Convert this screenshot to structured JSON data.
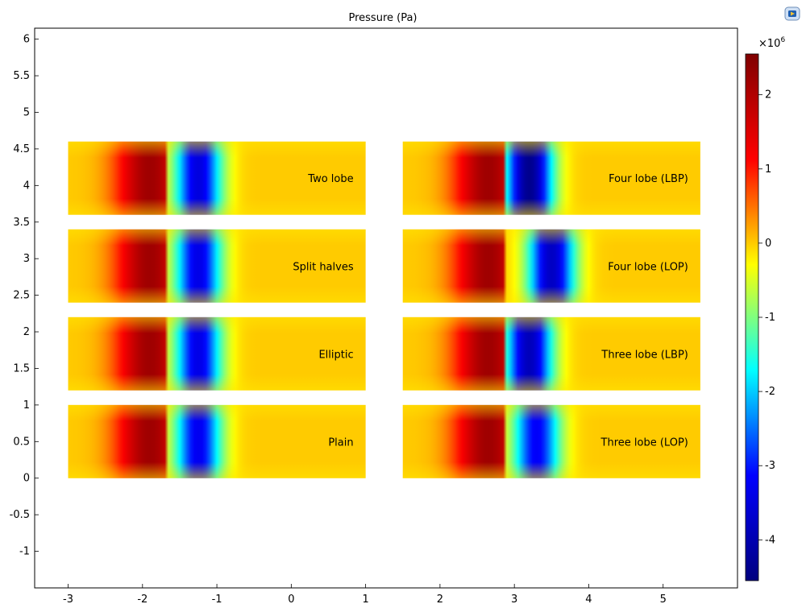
{
  "chart_data": {
    "type": "heatmap",
    "title": "Pressure (Pa)",
    "xlabel": "",
    "ylabel": "",
    "xlim": [
      -3.45,
      6.0
    ],
    "ylim": [
      -1.5,
      6.15
    ],
    "xticks": [
      -3,
      -2,
      -1,
      0,
      1,
      2,
      3,
      4,
      5
    ],
    "yticks": [
      6,
      5.5,
      5,
      4.5,
      4,
      3.5,
      3,
      2.5,
      2,
      1.5,
      1,
      0.5,
      0,
      -0.5,
      -1
    ],
    "grid": false,
    "panels": [
      {
        "label": "Two lobe",
        "x": [
          -3,
          1
        ],
        "y": [
          3.6,
          4.6
        ],
        "hot_center": -1.9,
        "cold_center": -1.25,
        "cold_depth": -3.5
      },
      {
        "label": "Split halves",
        "x": [
          -3,
          1
        ],
        "y": [
          2.4,
          3.4
        ],
        "hot_center": -1.9,
        "cold_center": -1.25,
        "cold_depth": -3.4
      },
      {
        "label": "Elliptic",
        "x": [
          -3,
          1
        ],
        "y": [
          1.2,
          2.2
        ],
        "hot_center": -1.9,
        "cold_center": -1.25,
        "cold_depth": -3.4
      },
      {
        "label": "Plain",
        "x": [
          -3,
          1
        ],
        "y": [
          0,
          1
        ],
        "hot_center": -1.9,
        "cold_center": -1.25,
        "cold_depth": -3.3
      },
      {
        "label": "Four lobe (LBP)",
        "x": [
          1.5,
          5.5
        ],
        "y": [
          3.6,
          4.6
        ],
        "hot_center": 2.65,
        "cold_center": 3.2,
        "cold_depth": -4.4
      },
      {
        "label": "Four lobe (LOP)",
        "x": [
          1.5,
          5.5
        ],
        "y": [
          2.4,
          3.4
        ],
        "hot_center": 2.65,
        "cold_center": 3.5,
        "cold_depth": -3.8
      },
      {
        "label": "Three lobe (LBP)",
        "x": [
          1.5,
          5.5
        ],
        "y": [
          1.2,
          2.2
        ],
        "hot_center": 2.65,
        "cold_center": 3.2,
        "cold_depth": -3.9
      },
      {
        "label": "Three lobe (LOP)",
        "x": [
          1.5,
          5.5
        ],
        "y": [
          0,
          1
        ],
        "hot_center": 2.65,
        "cold_center": 3.3,
        "cold_depth": -3.2
      }
    ],
    "colorbar": {
      "multiplier": "×10",
      "exponent": "6",
      "range": [
        -4.55,
        2.55
      ],
      "ticks": [
        2,
        1,
        0,
        -1,
        -2,
        -3,
        -4
      ],
      "colormap": [
        "#00007f",
        "#0000ff",
        "#00ffff",
        "#ffff00",
        "#ff0000",
        "#7f0000"
      ]
    }
  },
  "colors": {
    "background": "#ffffff",
    "axis": "#000000",
    "panel_base": "#ffe600"
  },
  "toolbar": {
    "logo_icon": "app-logo-icon"
  }
}
